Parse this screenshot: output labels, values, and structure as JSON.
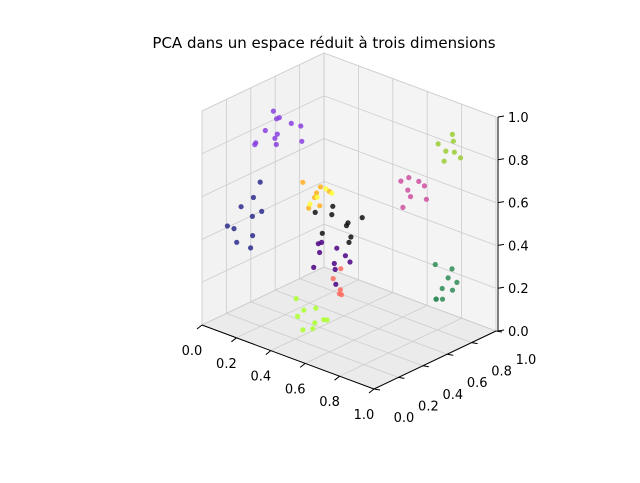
{
  "chart_data": {
    "type": "scatter",
    "projection": "3d",
    "title": "PCA dans un espace réduit à trois dimensions",
    "xlabel": "",
    "ylabel": "",
    "zlabel": "",
    "xlim": [
      0,
      1
    ],
    "ylim": [
      0,
      1
    ],
    "zlim": [
      0,
      1
    ],
    "x_ticks": [
      "0.0",
      "0.2",
      "0.4",
      "0.6",
      "0.8",
      "1.0"
    ],
    "y_ticks": [
      "0.0",
      "0.2",
      "0.4",
      "0.6",
      "0.8",
      "1.0"
    ],
    "z_ticks": [
      "0.0",
      "0.2",
      "0.4",
      "0.6",
      "0.8",
      "1.0"
    ],
    "grid": true,
    "legend": "none",
    "pane_color": "#f2f2f2",
    "grid_color": "#cccccc",
    "series": [
      {
        "color": "#8a3fe0",
        "points": [
          [
            0.12,
            0.35,
            0.85
          ],
          [
            0.15,
            0.4,
            0.9
          ],
          [
            0.1,
            0.3,
            0.8
          ],
          [
            0.2,
            0.45,
            0.88
          ],
          [
            0.18,
            0.38,
            0.92
          ],
          [
            0.14,
            0.42,
            0.82
          ],
          [
            0.22,
            0.5,
            0.86
          ],
          [
            0.08,
            0.32,
            0.78
          ],
          [
            0.16,
            0.36,
            0.95
          ],
          [
            0.24,
            0.48,
            0.8
          ],
          [
            0.12,
            0.44,
            0.76
          ],
          [
            0.19,
            0.33,
            0.84
          ]
        ]
      },
      {
        "color": "#2d2a8c",
        "points": [
          [
            0.05,
            0.25,
            0.5
          ],
          [
            0.08,
            0.3,
            0.45
          ],
          [
            0.1,
            0.28,
            0.55
          ],
          [
            0.03,
            0.22,
            0.4
          ],
          [
            0.12,
            0.32,
            0.48
          ],
          [
            0.06,
            0.2,
            0.35
          ],
          [
            0.09,
            0.35,
            0.6
          ],
          [
            0.02,
            0.18,
            0.42
          ],
          [
            0.11,
            0.26,
            0.38
          ],
          [
            0.07,
            0.3,
            0.3
          ]
        ]
      },
      {
        "color": "#ffb01e",
        "points": [
          [
            0.3,
            0.5,
            0.55
          ],
          [
            0.32,
            0.52,
            0.6
          ],
          [
            0.28,
            0.48,
            0.5
          ],
          [
            0.35,
            0.55,
            0.58
          ],
          [
            0.26,
            0.46,
            0.62
          ],
          [
            0.33,
            0.5,
            0.52
          ],
          [
            0.29,
            0.53,
            0.56
          ]
        ]
      },
      {
        "color": "#111111",
        "points": [
          [
            0.4,
            0.5,
            0.5
          ],
          [
            0.45,
            0.55,
            0.45
          ],
          [
            0.5,
            0.5,
            0.4
          ],
          [
            0.42,
            0.48,
            0.55
          ],
          [
            0.48,
            0.52,
            0.48
          ],
          [
            0.38,
            0.45,
            0.42
          ],
          [
            0.52,
            0.58,
            0.5
          ],
          [
            0.44,
            0.6,
            0.38
          ],
          [
            0.36,
            0.42,
            0.52
          ]
        ]
      },
      {
        "color": "#cc4fa0",
        "points": [
          [
            0.7,
            0.7,
            0.65
          ],
          [
            0.75,
            0.72,
            0.7
          ],
          [
            0.68,
            0.75,
            0.6
          ],
          [
            0.72,
            0.68,
            0.72
          ],
          [
            0.78,
            0.74,
            0.62
          ],
          [
            0.66,
            0.7,
            0.68
          ],
          [
            0.74,
            0.78,
            0.66
          ],
          [
            0.7,
            0.66,
            0.58
          ]
        ]
      },
      {
        "color": "#9acd32",
        "points": [
          [
            0.85,
            0.8,
            0.85
          ],
          [
            0.88,
            0.82,
            0.9
          ],
          [
            0.82,
            0.78,
            0.88
          ],
          [
            0.9,
            0.85,
            0.82
          ],
          [
            0.86,
            0.84,
            0.92
          ],
          [
            0.84,
            0.8,
            0.8
          ],
          [
            0.9,
            0.8,
            0.86
          ]
        ]
      },
      {
        "color": "#2e8b57",
        "points": [
          [
            0.9,
            0.7,
            0.25
          ],
          [
            0.92,
            0.72,
            0.3
          ],
          [
            0.88,
            0.68,
            0.2
          ],
          [
            0.95,
            0.75,
            0.28
          ],
          [
            0.86,
            0.7,
            0.35
          ],
          [
            0.93,
            0.66,
            0.22
          ],
          [
            0.9,
            0.78,
            0.32
          ],
          [
            0.85,
            0.72,
            0.18
          ],
          [
            0.96,
            0.7,
            0.26
          ]
        ]
      },
      {
        "color": "#adff2f",
        "points": [
          [
            0.45,
            0.2,
            0.15
          ],
          [
            0.5,
            0.22,
            0.1
          ],
          [
            0.42,
            0.18,
            0.2
          ],
          [
            0.55,
            0.25,
            0.12
          ],
          [
            0.48,
            0.15,
            0.08
          ],
          [
            0.52,
            0.2,
            0.18
          ],
          [
            0.4,
            0.22,
            0.1
          ],
          [
            0.58,
            0.18,
            0.15
          ],
          [
            0.46,
            0.26,
            0.05
          ]
        ]
      },
      {
        "color": "#4b0082",
        "points": [
          [
            0.4,
            0.4,
            0.35
          ],
          [
            0.45,
            0.45,
            0.3
          ],
          [
            0.5,
            0.4,
            0.4
          ],
          [
            0.38,
            0.38,
            0.28
          ],
          [
            0.52,
            0.48,
            0.32
          ],
          [
            0.42,
            0.5,
            0.25
          ],
          [
            0.48,
            0.42,
            0.22
          ],
          [
            0.55,
            0.4,
            0.38
          ],
          [
            0.35,
            0.46,
            0.36
          ],
          [
            0.44,
            0.36,
            0.42
          ]
        ]
      },
      {
        "color": "#ff6a5c",
        "points": [
          [
            0.55,
            0.3,
            0.3
          ],
          [
            0.6,
            0.28,
            0.25
          ],
          [
            0.58,
            0.32,
            0.35
          ],
          [
            0.62,
            0.26,
            0.28
          ],
          [
            0.57,
            0.34,
            0.22
          ]
        ]
      },
      {
        "color": "#ffff33",
        "points": [
          [
            0.35,
            0.45,
            0.58
          ],
          [
            0.38,
            0.48,
            0.62
          ],
          [
            0.33,
            0.42,
            0.55
          ],
          [
            0.4,
            0.5,
            0.6
          ]
        ]
      }
    ]
  }
}
